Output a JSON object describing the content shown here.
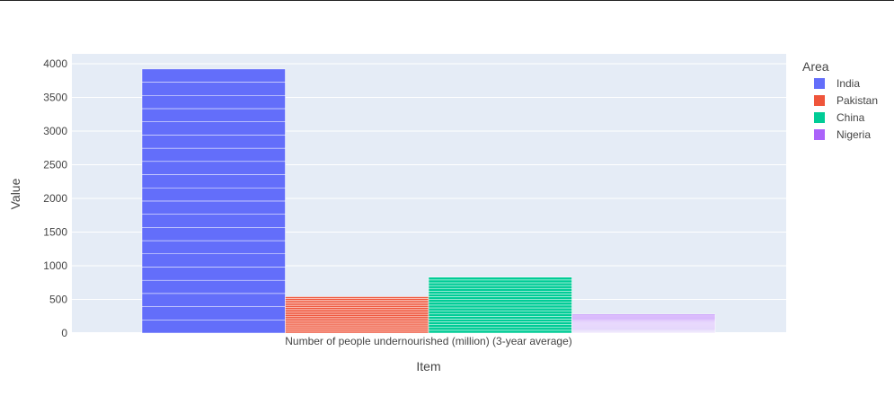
{
  "chart_data": {
    "type": "bar",
    "barmode": "group",
    "xlabel": "Item",
    "ylabel": "Value",
    "ylim": [
      0,
      4100
    ],
    "yticks": [
      0,
      500,
      1000,
      1500,
      2000,
      2500,
      3000,
      3500,
      4000
    ],
    "categories": [
      "Number of people undernourished (million) (3-year average)"
    ],
    "legend": {
      "title": "Area",
      "position": "top-right"
    },
    "grid": true,
    "series": [
      {
        "name": "India",
        "color": "#636efa",
        "values": [
          3920
        ],
        "stacked_segments": [
          196.1,
          196.1,
          196.1,
          196.1,
          196.1,
          196.1,
          196.1,
          196.1,
          196.1,
          196.1,
          196.1,
          196.1,
          196.1,
          196.1,
          196.1,
          196.1,
          196.1,
          196.1,
          196.1,
          196.1
        ]
      },
      {
        "name": "Pakistan",
        "color": "#ef553b",
        "values": [
          540
        ],
        "stacked_segments": [
          27,
          27,
          27,
          27,
          27,
          27,
          27,
          27,
          27,
          27,
          27,
          27,
          27,
          27,
          27,
          27,
          27,
          27,
          27,
          27
        ]
      },
      {
        "name": "China",
        "color": "#00cc96",
        "values": [
          830
        ],
        "stacked_segments": [
          41.5,
          41.5,
          41.5,
          41.5,
          41.5,
          41.5,
          41.5,
          41.5,
          41.5,
          41.5,
          41.5,
          41.5,
          41.5,
          41.5,
          41.5,
          41.5,
          41.5,
          41.5,
          41.5,
          41.5
        ]
      },
      {
        "name": "Nigeria",
        "color": "#ab63fa",
        "values": [
          280
        ],
        "stacked_segments": [
          14,
          14,
          14,
          14,
          14,
          14,
          14,
          14,
          14,
          14,
          14,
          14,
          14,
          14,
          14,
          14,
          14,
          14,
          14,
          14
        ],
        "fading": true
      }
    ]
  }
}
